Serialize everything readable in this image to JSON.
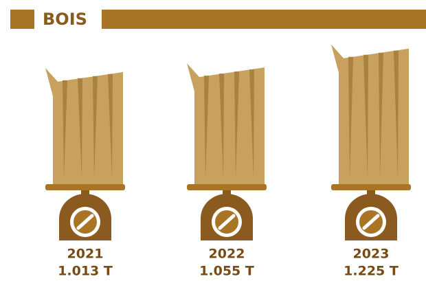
{
  "chart_data": {
    "type": "bar",
    "title": "BOIS",
    "categories": [
      "2021",
      "2022",
      "2023"
    ],
    "values": [
      1.013,
      1.055,
      1.225
    ],
    "value_labels": [
      "1.013 T",
      "1.055 T",
      "1.225 T"
    ],
    "color": "#c9a15e"
  }
}
